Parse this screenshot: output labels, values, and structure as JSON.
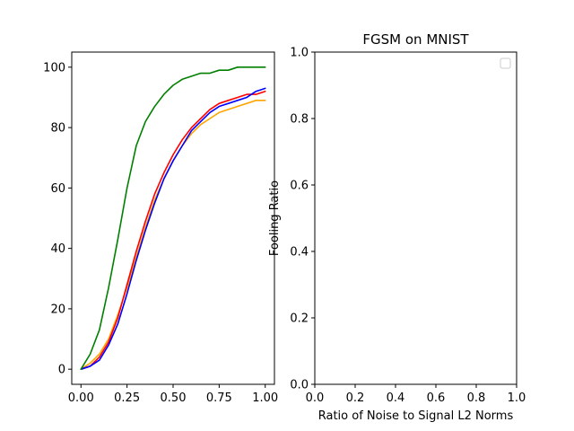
{
  "chart_data": [
    {
      "type": "line",
      "title": "",
      "xlabel": "",
      "ylabel": "",
      "xlim": [
        -0.05,
        1.05
      ],
      "ylim": [
        -5,
        105
      ],
      "xticks": [
        0.0,
        0.25,
        0.5,
        0.75,
        1.0
      ],
      "xtick_labels": [
        "0.00",
        "0.25",
        "0.50",
        "0.75",
        "1.00"
      ],
      "yticks": [
        0,
        20,
        40,
        60,
        80,
        100
      ],
      "ytick_labels": [
        "0",
        "20",
        "40",
        "60",
        "80",
        "100"
      ],
      "grid": false,
      "series": [
        {
          "color": "#ffa500",
          "x": [
            0.0,
            0.05,
            0.1,
            0.15,
            0.2,
            0.25,
            0.3,
            0.35,
            0.4,
            0.45,
            0.5,
            0.55,
            0.6,
            0.65,
            0.7,
            0.75,
            0.8,
            0.85,
            0.9,
            0.95,
            1.0
          ],
          "y": [
            0,
            2,
            5,
            10,
            18,
            27,
            37,
            47,
            56,
            63,
            69,
            74,
            78,
            81,
            83,
            85,
            86,
            87,
            88,
            89,
            89
          ]
        },
        {
          "color": "#ff0000",
          "x": [
            0.0,
            0.05,
            0.1,
            0.15,
            0.2,
            0.25,
            0.3,
            0.35,
            0.4,
            0.45,
            0.5,
            0.55,
            0.6,
            0.65,
            0.7,
            0.75,
            0.8,
            0.85,
            0.9,
            0.95,
            1.0
          ],
          "y": [
            0,
            1,
            4,
            9,
            17,
            28,
            39,
            49,
            58,
            65,
            71,
            76,
            80,
            83,
            86,
            88,
            89,
            90,
            91,
            91,
            92
          ]
        },
        {
          "color": "#0000ff",
          "x": [
            0.0,
            0.05,
            0.1,
            0.15,
            0.2,
            0.25,
            0.3,
            0.35,
            0.4,
            0.45,
            0.5,
            0.55,
            0.6,
            0.65,
            0.7,
            0.75,
            0.8,
            0.85,
            0.9,
            0.95,
            1.0
          ],
          "y": [
            0,
            1,
            3,
            8,
            15,
            25,
            36,
            46,
            55,
            63,
            69,
            74,
            79,
            82,
            85,
            87,
            88,
            89,
            90,
            92,
            93
          ]
        },
        {
          "color": "#008000",
          "x": [
            0.0,
            0.05,
            0.1,
            0.15,
            0.2,
            0.25,
            0.3,
            0.35,
            0.4,
            0.45,
            0.5,
            0.55,
            0.6,
            0.65,
            0.7,
            0.75,
            0.8,
            0.85,
            0.9,
            0.95,
            1.0
          ],
          "y": [
            0,
            5,
            13,
            27,
            43,
            60,
            74,
            82,
            87,
            91,
            94,
            96,
            97,
            98,
            98,
            99,
            99,
            100,
            100,
            100,
            100
          ]
        }
      ]
    },
    {
      "type": "line",
      "title": "FGSM on MNIST",
      "xlabel": "Ratio of Noise to Signal L2 Norms",
      "ylabel": "Fooling Ratio",
      "xlim": [
        0,
        1
      ],
      "ylim": [
        0,
        1
      ],
      "xticks": [
        0.0,
        0.2,
        0.4,
        0.6,
        0.8,
        1.0
      ],
      "xtick_labels": [
        "0.0",
        "0.2",
        "0.4",
        "0.6",
        "0.8",
        "1.0"
      ],
      "yticks": [
        0.0,
        0.2,
        0.4,
        0.6,
        0.8,
        1.0
      ],
      "ytick_labels": [
        "0.0",
        "0.2",
        "0.4",
        "0.6",
        "0.8",
        "1.0"
      ],
      "grid": false,
      "legend": "upper-right, empty",
      "series": []
    }
  ]
}
